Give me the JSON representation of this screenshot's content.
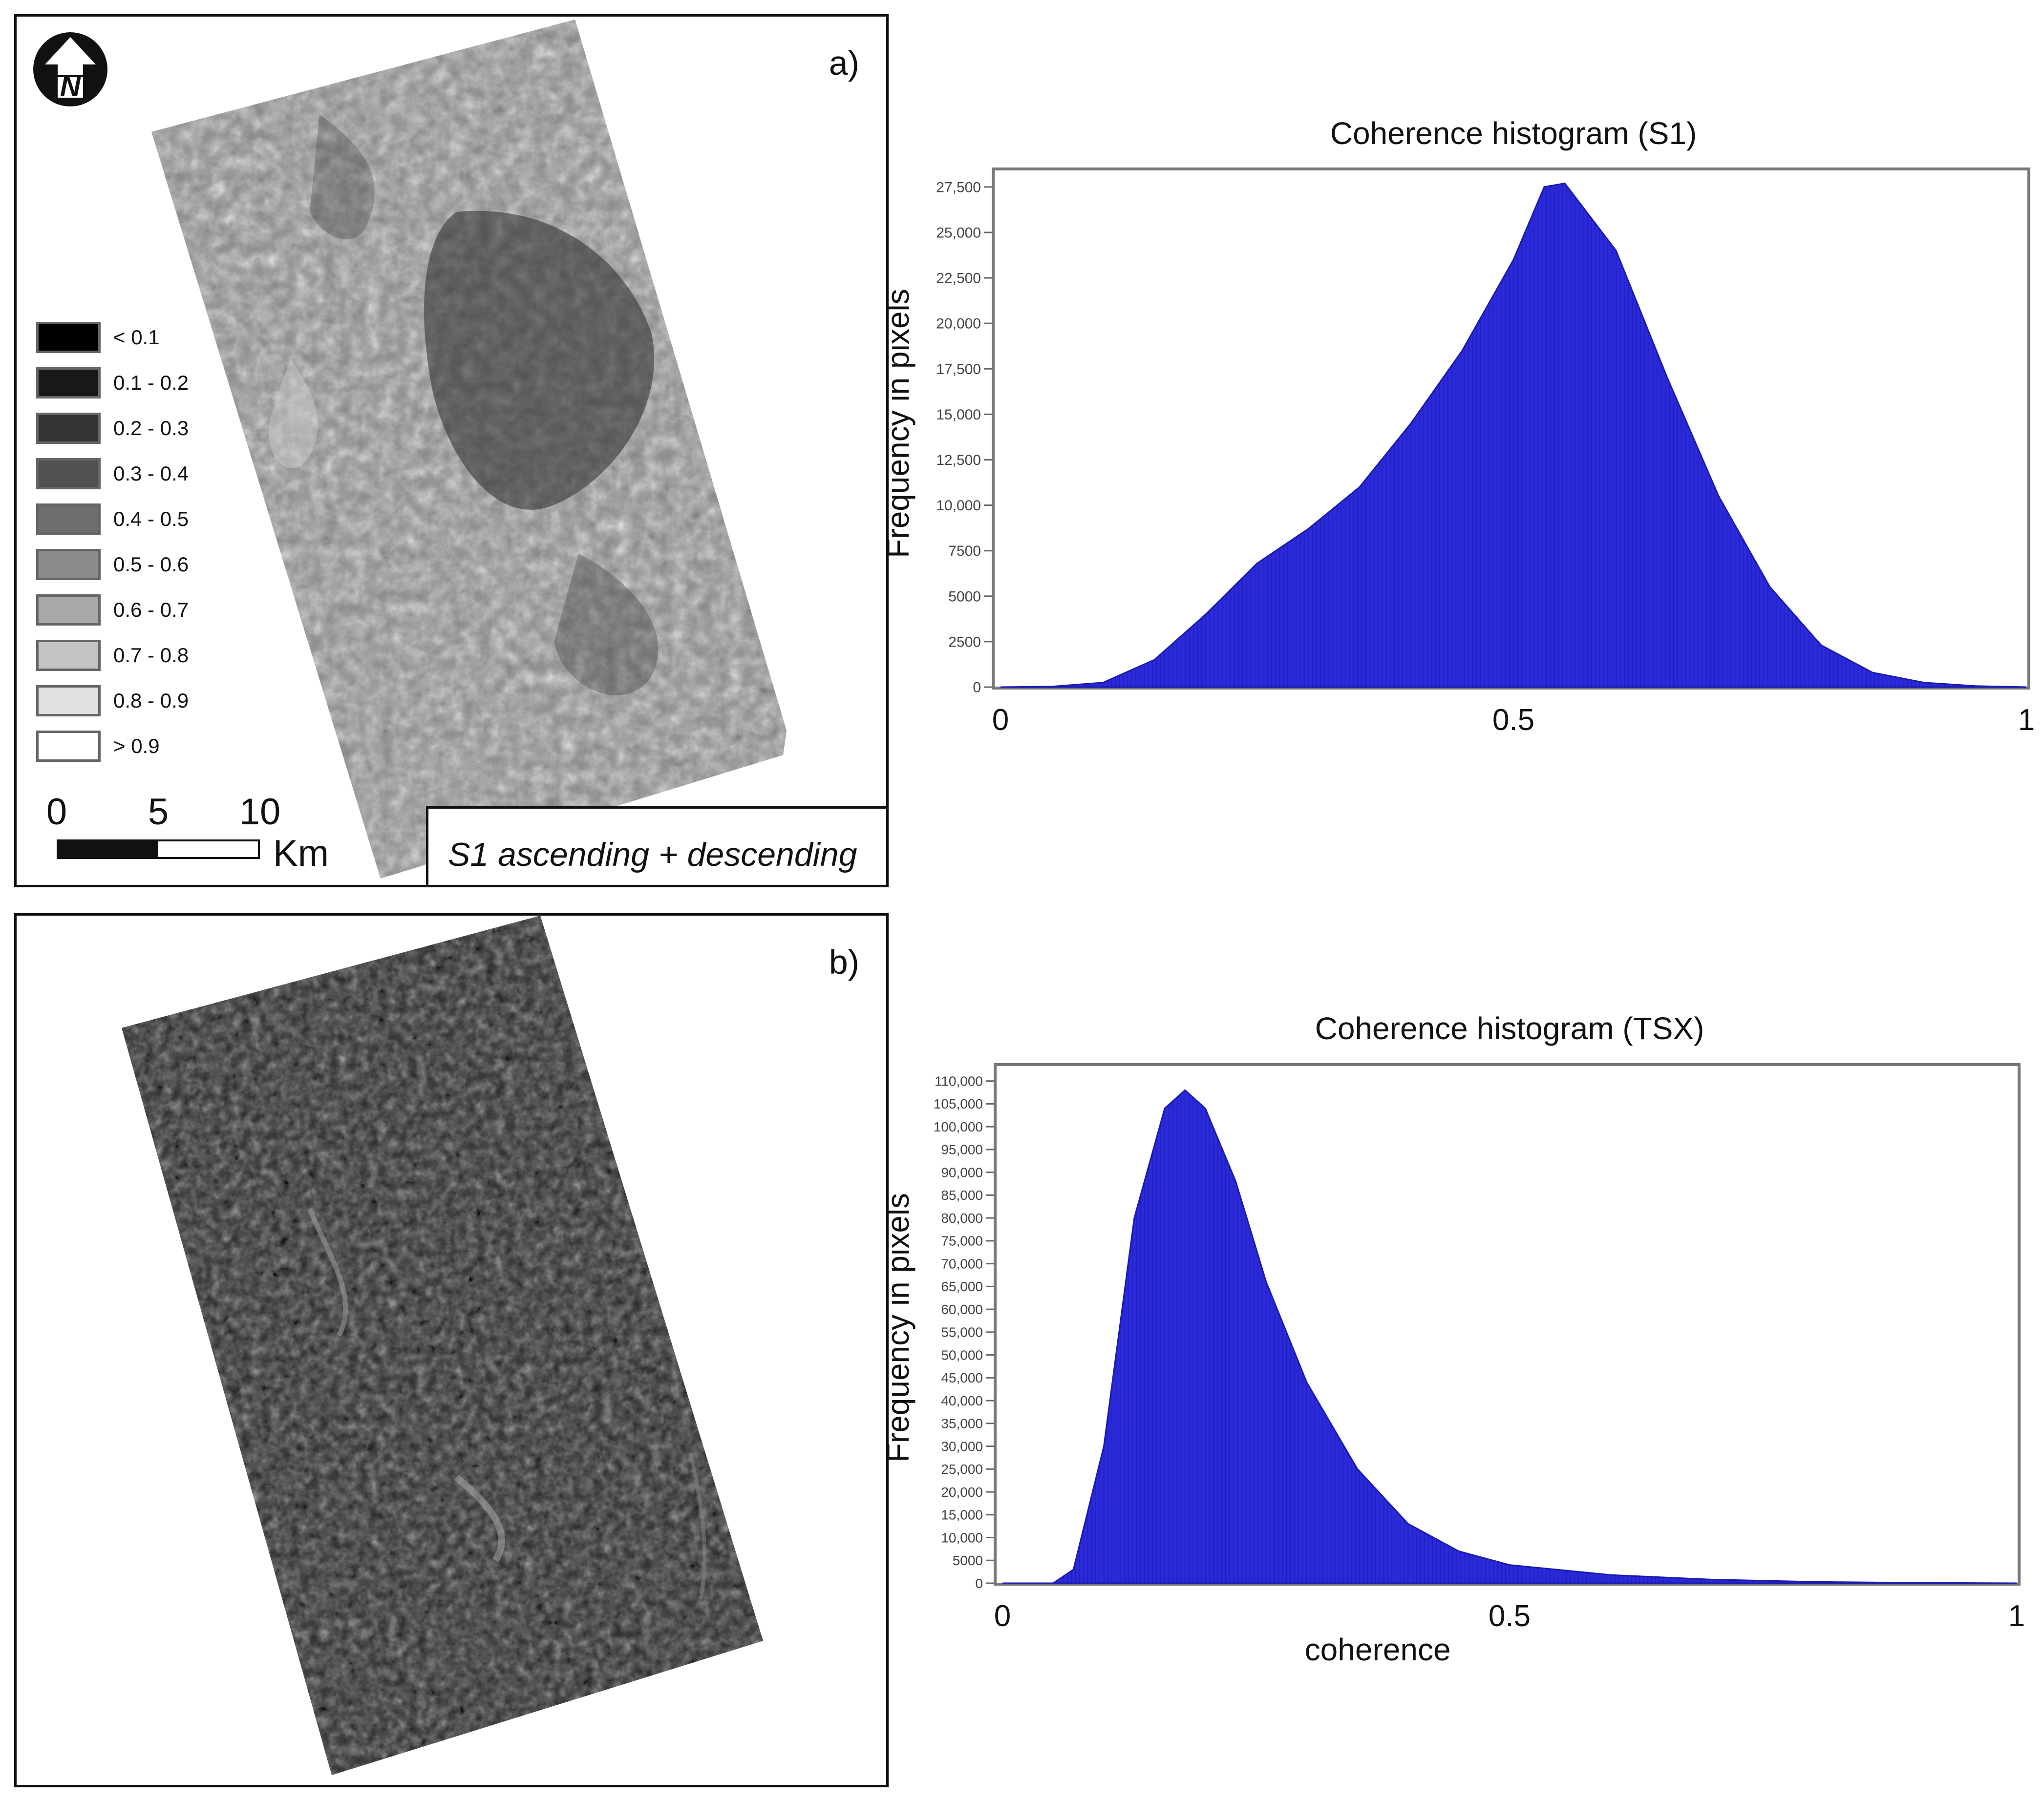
{
  "panel_a": {
    "letter": "a)",
    "caption": "S1 ascending + descending",
    "legend": [
      {
        "label": "< 0.1",
        "color": "#000000"
      },
      {
        "label": "0.1 - 0.2",
        "color": "#181818"
      },
      {
        "label": "0.2 - 0.3",
        "color": "#333333"
      },
      {
        "label": "0.3 - 0.4",
        "color": "#505050"
      },
      {
        "label": "0.4 - 0.5",
        "color": "#6e6e6e"
      },
      {
        "label": "0.5 - 0.6",
        "color": "#8c8c8c"
      },
      {
        "label": "0.6 - 0.7",
        "color": "#a8a8a8"
      },
      {
        "label": "0.7 - 0.8",
        "color": "#c4c4c4"
      },
      {
        "label": "0.8 - 0.9",
        "color": "#e0e0e0"
      },
      {
        "label": "> 0.9",
        "color": "#ffffff"
      }
    ],
    "scale_bar": {
      "ticks": [
        "0",
        "5",
        "10"
      ],
      "unit": "Km"
    },
    "north_arrow": "north-arrow-icon"
  },
  "panel_b": {
    "letter": "b)"
  },
  "colors": {
    "histogram_fill": "#2a2ad8",
    "frame": "#777777"
  },
  "chart_data": [
    {
      "type": "area",
      "title": "Coherence histogram (S1)",
      "xlabel": "",
      "ylabel": "Frequency in pixels",
      "xlim": [
        0,
        1
      ],
      "ylim": [
        0,
        29000
      ],
      "x_ticks": [
        "0",
        "0.5",
        "1"
      ],
      "y_ticks": [
        "0",
        "2500",
        "5000",
        "7500",
        "10,000",
        "12,500",
        "15,000",
        "17,500",
        "20,000",
        "22,500",
        "25,000",
        "27,500"
      ],
      "x": [
        0,
        0.05,
        0.1,
        0.15,
        0.2,
        0.25,
        0.3,
        0.35,
        0.4,
        0.45,
        0.5,
        0.53,
        0.55,
        0.6,
        0.65,
        0.7,
        0.75,
        0.8,
        0.85,
        0.9,
        0.95,
        1.0
      ],
      "values": [
        0,
        30,
        250,
        1500,
        4000,
        6800,
        8700,
        11000,
        14500,
        18500,
        23500,
        27500,
        27700,
        24000,
        17000,
        10500,
        5500,
        2300,
        800,
        250,
        60,
        0
      ]
    },
    {
      "type": "area",
      "title": "Coherence histogram (TSX)",
      "xlabel": "coherence",
      "ylabel": "Frequency in pixels",
      "xlim": [
        0,
        1
      ],
      "ylim": [
        0,
        112000
      ],
      "x_ticks": [
        "0",
        "0.5",
        "1"
      ],
      "y_ticks": [
        "0",
        "5000",
        "10,000",
        "15,000",
        "20,000",
        "25,000",
        "30,000",
        "35,000",
        "40,000",
        "45,000",
        "50,000",
        "55,000",
        "60,000",
        "65,000",
        "70,000",
        "75,000",
        "80,000",
        "85,000",
        "90,000",
        "95,000",
        "100,000",
        "105,000",
        "110,000"
      ],
      "x": [
        0,
        0.05,
        0.07,
        0.1,
        0.13,
        0.16,
        0.18,
        0.2,
        0.23,
        0.26,
        0.3,
        0.35,
        0.4,
        0.45,
        0.5,
        0.6,
        0.7,
        0.8,
        0.9,
        1.0
      ],
      "values": [
        0,
        0,
        3000,
        30000,
        80000,
        104000,
        108000,
        104000,
        88000,
        66000,
        44000,
        25000,
        13000,
        7000,
        4000,
        1800,
        800,
        300,
        100,
        0
      ]
    }
  ]
}
